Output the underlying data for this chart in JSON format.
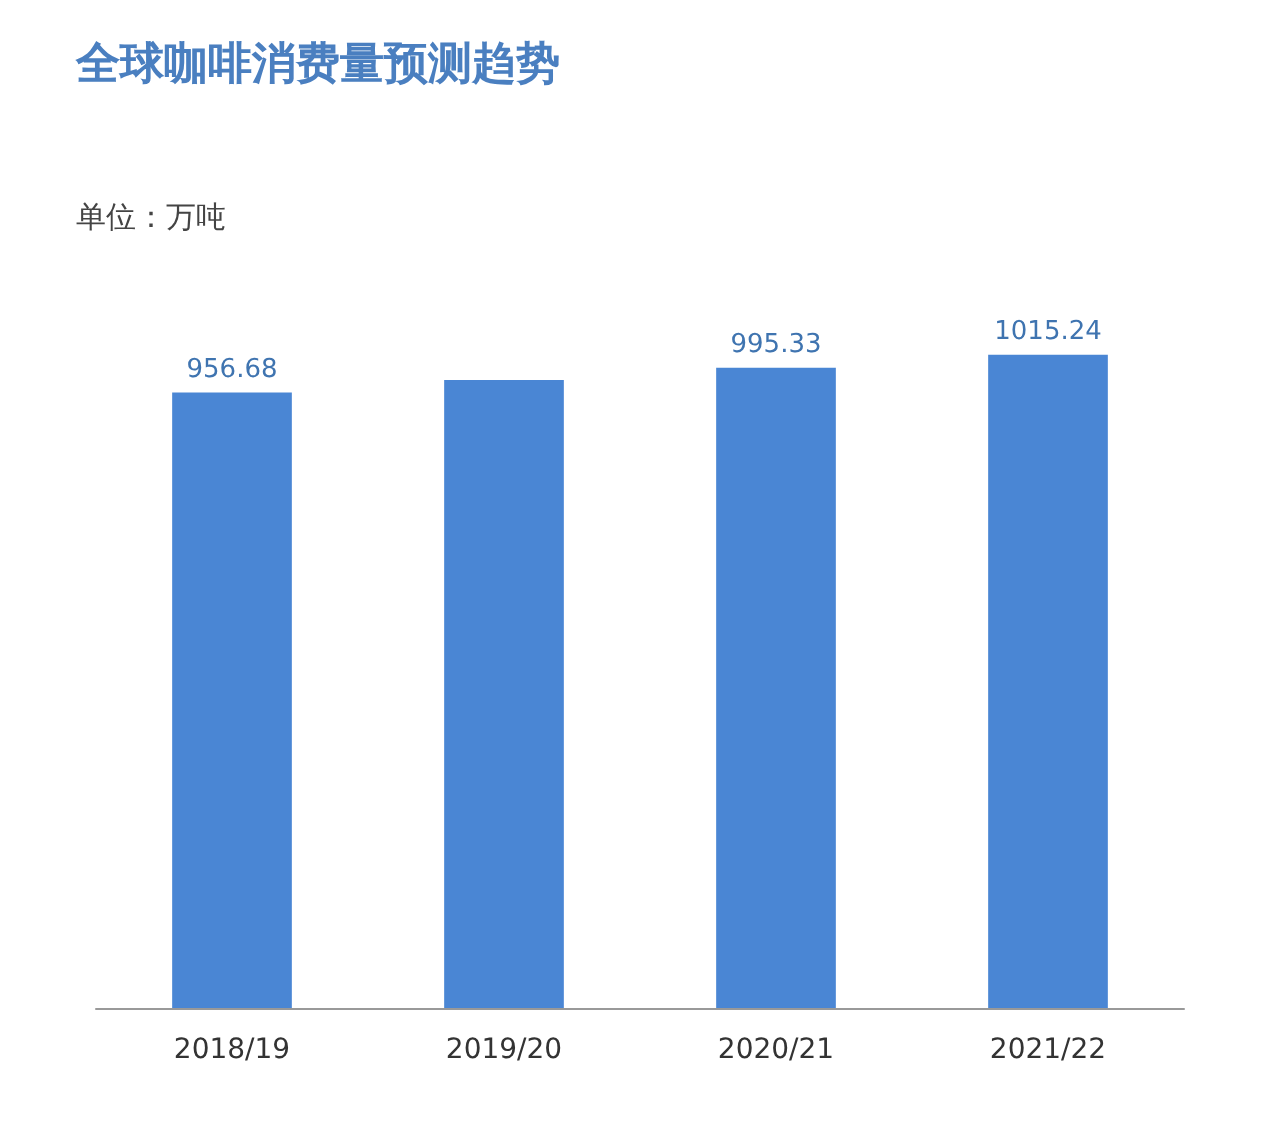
{
  "chart_data": {
    "type": "bar",
    "title": "全球咖啡消费量预测趋势",
    "subtitle": "单位：万吨",
    "categories": [
      "2018/19",
      "2019/20",
      "2020/21",
      "2021/22"
    ],
    "values": [
      956.68,
      976,
      995.33,
      1015.24
    ],
    "value_labels": [
      "956.68",
      null,
      "995.33",
      "1015.24"
    ],
    "color": "#4a86d4",
    "tick_labels": "x"
  }
}
